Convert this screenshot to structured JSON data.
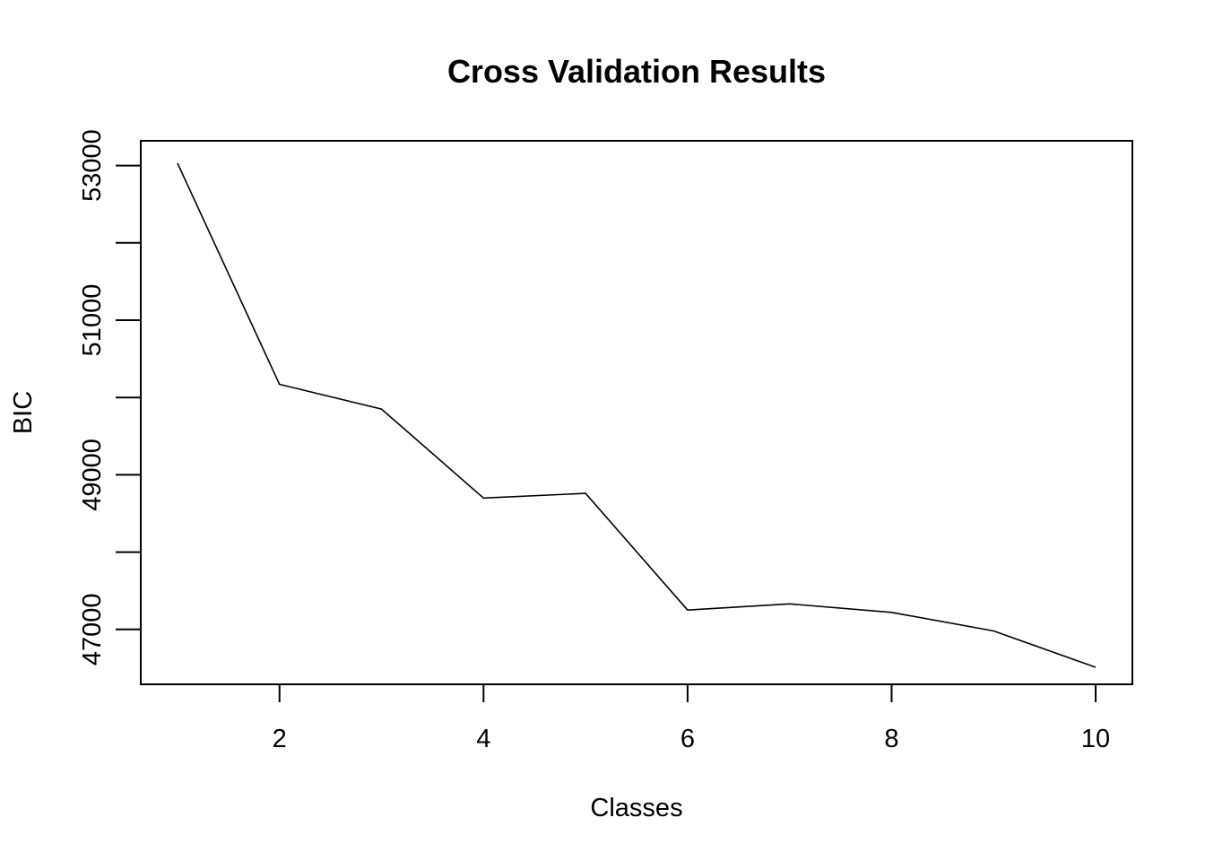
{
  "chart_data": {
    "type": "line",
    "title": "Cross Validation Results",
    "xlabel": "Classes",
    "ylabel": "BIC",
    "x": [
      1,
      2,
      3,
      4,
      5,
      6,
      7,
      8,
      9,
      10
    ],
    "series": [
      {
        "values": [
          53030,
          50170,
          49850,
          48700,
          48760,
          47250,
          47330,
          47220,
          46980,
          46510
        ]
      }
    ],
    "xticks": [
      2,
      4,
      6,
      8,
      10
    ],
    "xtick_labels": [
      "2",
      "4",
      "6",
      "8",
      "10"
    ],
    "yticks": [
      47000,
      48000,
      49000,
      50000,
      51000,
      52000,
      53000
    ],
    "ytick_labels": [
      "47000",
      "",
      "49000",
      "",
      "51000",
      "",
      "53000"
    ],
    "xlim": [
      0.64,
      10.36
    ],
    "ylim": [
      46290,
      53320
    ],
    "grid": false,
    "line_color": "#000000"
  }
}
